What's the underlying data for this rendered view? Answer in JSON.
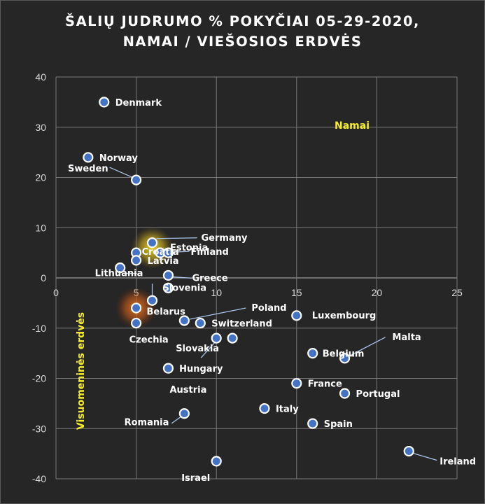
{
  "title_lines": [
    "ŠALIŲ JUDRUMO % POKYČIAI 05-29-2020,",
    "NAMAI / VIEŠOSIOS ERDVĖS"
  ],
  "chart_data": {
    "type": "scatter",
    "title": "ŠALIŲ JUDRUMO % POKYČIAI 05-29-2020, NAMAI / VIEŠOSIOS ERDVĖS",
    "xlim": [
      0,
      25
    ],
    "ylim": [
      -40,
      40
    ],
    "x_ticks": [
      0,
      5,
      10,
      15,
      20,
      25
    ],
    "y_ticks": [
      -40,
      -30,
      -20,
      -10,
      0,
      10,
      20,
      30,
      40
    ],
    "grid": true,
    "annotations": {
      "namai": "Namai",
      "visuomenines": "Visuomeninės erdvės"
    },
    "highlight_colors": {
      "lithuania": "#f5e12c",
      "belarus": "#f07a1e"
    },
    "point_color": "#4472c4",
    "points": [
      {
        "label": "Denmark",
        "x": 3,
        "y": 35
      },
      {
        "label": "Norway",
        "x": 2,
        "y": 24
      },
      {
        "label": "Sweden",
        "x": 5,
        "y": 19.5
      },
      {
        "label": "Germany",
        "x": 6,
        "y": 7
      },
      {
        "label": "Estonia",
        "x": 6.5,
        "y": 5
      },
      {
        "label": "Finland",
        "x": 7,
        "y": 5
      },
      {
        "label": "Croatia",
        "x": 5,
        "y": 5
      },
      {
        "label": "Latvia",
        "x": 5,
        "y": 3.5
      },
      {
        "label": "Lithuania",
        "x": 4,
        "y": 2
      },
      {
        "label": "Greece",
        "x": 7,
        "y": 0.5
      },
      {
        "label": "Slovenia",
        "x": 7,
        "y": -2
      },
      {
        "label": "Belarus",
        "x": 6,
        "y": -4.5
      },
      {
        "label": "Luxembourg",
        "x": 15,
        "y": -7.5
      },
      {
        "label": "Czechia",
        "x": 5,
        "y": -9
      },
      {
        "label": "Poland",
        "x": 8,
        "y": -8.5
      },
      {
        "label": "Switzerland",
        "x": 9,
        "y": -9
      },
      {
        "label": "Slovakia",
        "x": 10,
        "y": -12
      },
      {
        "label": "Hungary",
        "x": 11,
        "y": -12
      },
      {
        "label": "Austria",
        "x": 7,
        "y": -18
      },
      {
        "label": "Belgium",
        "x": 16,
        "y": -15
      },
      {
        "label": "Malta",
        "x": 18,
        "y": -16
      },
      {
        "label": "France",
        "x": 15,
        "y": -21
      },
      {
        "label": "Portugal",
        "x": 18,
        "y": -23
      },
      {
        "label": "Italy",
        "x": 13,
        "y": -26
      },
      {
        "label": "Spain",
        "x": 16,
        "y": -29
      },
      {
        "label": "Romania",
        "x": 8,
        "y": -27
      },
      {
        "label": "Ireland",
        "x": 22,
        "y": -34.5
      },
      {
        "label": "Israel",
        "x": 10,
        "y": -36.5
      },
      {
        "label": "",
        "x": 5,
        "y": -6
      }
    ]
  }
}
